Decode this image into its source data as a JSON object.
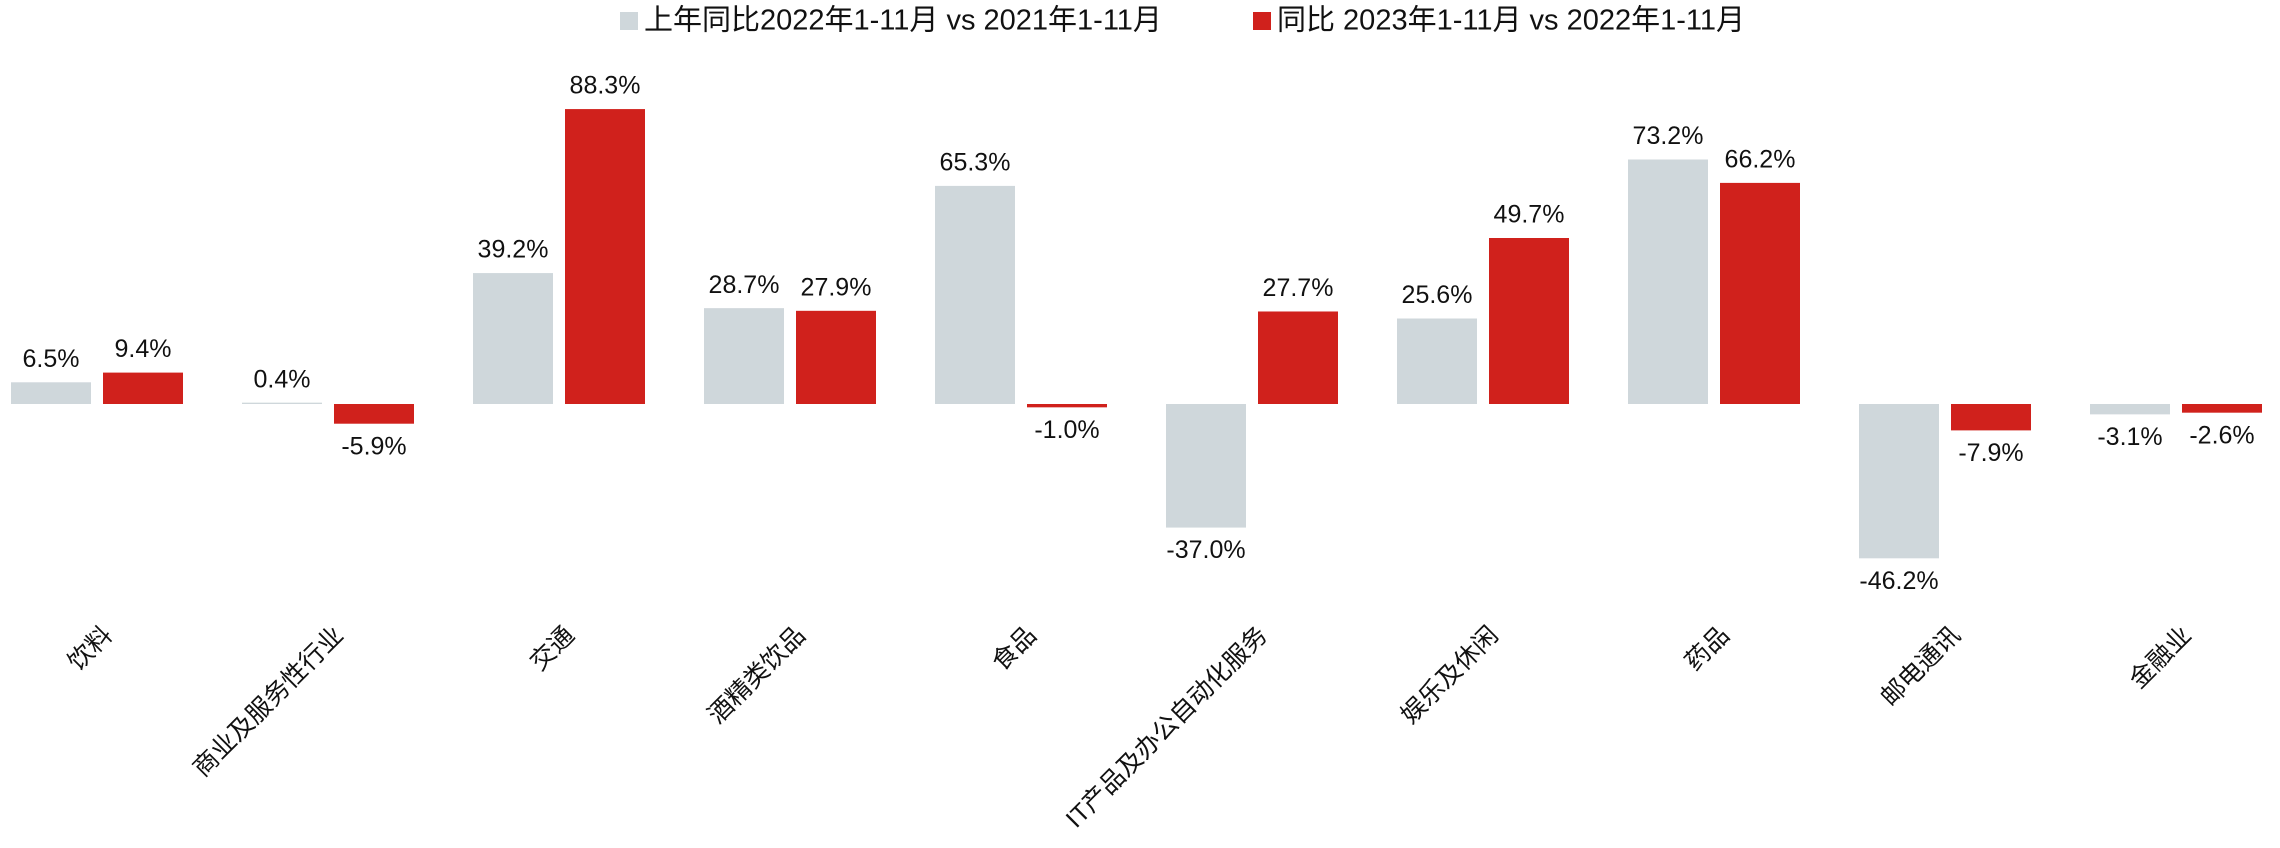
{
  "chart_data": {
    "type": "bar",
    "categories": [
      "饮料",
      "商业及服务性行业",
      "交通",
      "酒精类饮品",
      "食品",
      "IT产品及办公自动化服务",
      "娱乐及休闲",
      "药品",
      "邮电通讯",
      "金融业"
    ],
    "series": [
      {
        "name": "上年同比2022年1-11月 vs 2021年1-11月",
        "color": "#cfd7db",
        "values": [
          6.5,
          0.4,
          39.2,
          28.7,
          65.3,
          -37.0,
          25.6,
          73.2,
          -46.2,
          -3.1
        ],
        "value_labels": [
          "6.5%",
          "0.4%",
          "39.2%",
          "28.7%",
          "65.3%",
          "-37.0%",
          "25.6%",
          "73.2%",
          "-46.2%",
          "-3.1%"
        ]
      },
      {
        "name": "同比 2023年1-11月 vs 2022年1-11月",
        "color": "#d0211c",
        "values": [
          9.4,
          -5.9,
          88.3,
          27.9,
          -1.0,
          27.7,
          49.7,
          66.2,
          -7.9,
          -2.6
        ],
        "value_labels": [
          "9.4%",
          "-5.9%",
          "88.3%",
          "27.9%",
          "-1.0%",
          "27.7%",
          "49.7%",
          "66.2%",
          "-7.9%",
          "-2.6%"
        ]
      }
    ],
    "legend": "top"
  }
}
